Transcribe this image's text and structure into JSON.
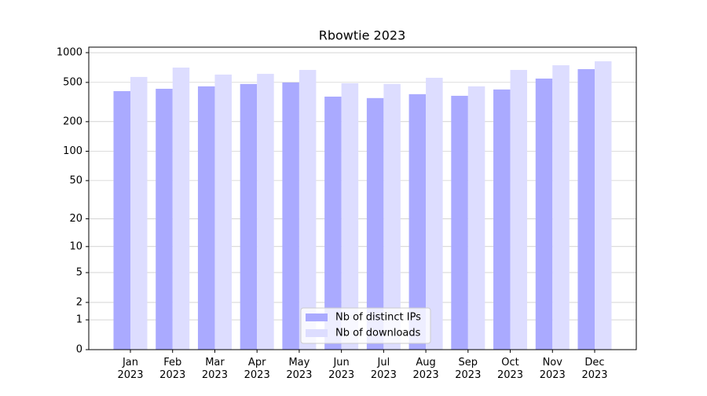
{
  "chart_data": {
    "type": "bar",
    "title": "Rbowtie 2023",
    "categories": [
      [
        "Jan",
        "2023"
      ],
      [
        "Feb",
        "2023"
      ],
      [
        "Mar",
        "2023"
      ],
      [
        "Apr",
        "2023"
      ],
      [
        "May",
        "2023"
      ],
      [
        "Jun",
        "2023"
      ],
      [
        "Jul",
        "2023"
      ],
      [
        "Aug",
        "2023"
      ],
      [
        "Sep",
        "2023"
      ],
      [
        "Oct",
        "2023"
      ],
      [
        "Nov",
        "2023"
      ],
      [
        "Dec",
        "2023"
      ]
    ],
    "series": [
      {
        "name": "Nb of distinct IPs",
        "color": "#aaaaff",
        "values": [
          408,
          431,
          456,
          482,
          499,
          359,
          347,
          380,
          366,
          424,
          547,
          681
        ]
      },
      {
        "name": "Nb of downloads",
        "color": "#ddddff",
        "values": [
          568,
          706,
          600,
          611,
          669,
          490,
          482,
          557,
          456,
          669,
          746,
          818
        ]
      }
    ],
    "yscale": "log1p",
    "ylim": [
      0,
      1137
    ],
    "yticks": [
      0,
      1,
      2,
      5,
      10,
      20,
      50,
      100,
      200,
      500,
      1000
    ],
    "grid": true,
    "legend": "lower center"
  }
}
